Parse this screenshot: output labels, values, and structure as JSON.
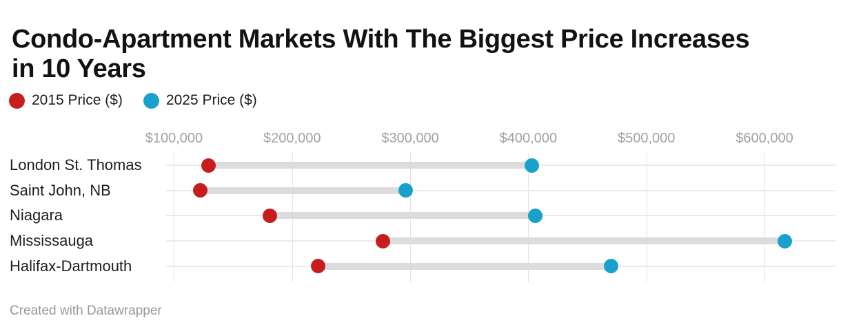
{
  "header": {
    "title": "Condo-Apartment Markets With The Biggest Price Increases\nin 10 Years"
  },
  "legend": {
    "items": [
      {
        "label": "2015 Price ($)",
        "color": "#c71e1d"
      },
      {
        "label": "2025 Price ($)",
        "color": "#18a1cd"
      }
    ]
  },
  "footer": {
    "credit": "Created with Datawrapper"
  },
  "chart_data": {
    "type": "scatter",
    "subtype": "dumbbell-range",
    "title": "Condo-Apartment Markets With The Biggest Price Increases in 10 Years",
    "categories": [
      "London St. Thomas",
      "Saint John, NB",
      "Niagara",
      "Mississauga",
      "Halifax-Dartmouth"
    ],
    "series": [
      {
        "name": "2015 Price ($)",
        "color": "#c71e1d",
        "values": [
          129000,
          122000,
          181000,
          277000,
          222000
        ]
      },
      {
        "name": "2025 Price ($)",
        "color": "#18a1cd",
        "values": [
          403000,
          296000,
          406000,
          617000,
          470000
        ]
      }
    ],
    "x_ticks": [
      {
        "label": "$100,000",
        "value": 100000
      },
      {
        "label": "$200,000",
        "value": 200000
      },
      {
        "label": "$300,000",
        "value": 300000
      },
      {
        "label": "$400,000",
        "value": 400000
      },
      {
        "label": "$500,000",
        "value": 500000
      },
      {
        "label": "$600,000",
        "value": 600000
      }
    ],
    "x_range": [
      93300,
      664800
    ],
    "grid": "vertical",
    "legend_position": "top",
    "connector_color": "#dcdcdc",
    "xlabel": "",
    "ylabel": ""
  }
}
